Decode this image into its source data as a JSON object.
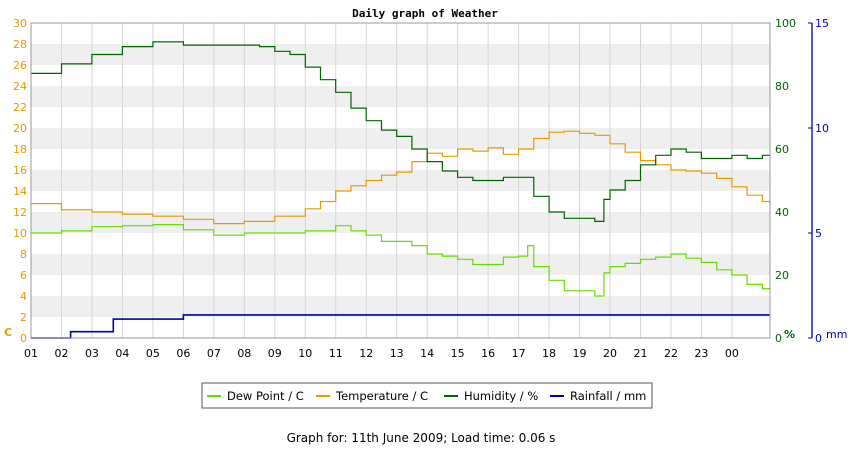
{
  "chart_data": {
    "type": "line",
    "title": "Daily graph of Weather",
    "x_ticks": [
      "01",
      "02",
      "03",
      "04",
      "05",
      "06",
      "07",
      "08",
      "09",
      "10",
      "11",
      "12",
      "13",
      "14",
      "15",
      "16",
      "17",
      "18",
      "19",
      "20",
      "21",
      "22",
      "23",
      "00"
    ],
    "x_range": [
      1,
      25.25
    ],
    "grid": true,
    "legend_position": "bottom",
    "axes": {
      "temp": {
        "label": "C",
        "range": [
          0,
          30
        ],
        "ticks": [
          0,
          2,
          4,
          6,
          8,
          10,
          12,
          14,
          16,
          18,
          20,
          22,
          24,
          26,
          28,
          30
        ],
        "color": "#e69a00"
      },
      "humidity": {
        "label": "%",
        "range": [
          0,
          100
        ],
        "ticks": [
          0,
          20,
          40,
          60,
          80,
          100
        ],
        "color": "#006400"
      },
      "rain": {
        "label": "mm",
        "range": [
          0,
          15
        ],
        "ticks": [
          0,
          5,
          10,
          15
        ],
        "color": "#0000aa"
      }
    },
    "series": [
      {
        "name": "Dew Point / C",
        "axis": "temp",
        "color": "#66dd00",
        "points": [
          [
            1,
            10
          ],
          [
            2,
            10.2
          ],
          [
            3,
            10.6
          ],
          [
            4,
            10.7
          ],
          [
            5,
            10.8
          ],
          [
            6,
            10.3
          ],
          [
            7,
            9.8
          ],
          [
            8,
            10
          ],
          [
            9,
            10
          ],
          [
            10,
            10.2
          ],
          [
            10.5,
            10.2
          ],
          [
            11,
            10.7
          ],
          [
            11.5,
            10.2
          ],
          [
            12,
            9.8
          ],
          [
            12.5,
            9.2
          ],
          [
            13,
            9.2
          ],
          [
            13.5,
            8.8
          ],
          [
            14,
            8
          ],
          [
            14.5,
            7.8
          ],
          [
            15,
            7.5
          ],
          [
            15.5,
            7
          ],
          [
            16,
            7
          ],
          [
            16.5,
            7.7
          ],
          [
            17,
            7.8
          ],
          [
            17.3,
            8.8
          ],
          [
            17.5,
            6.8
          ],
          [
            18,
            5.5
          ],
          [
            18.5,
            4.5
          ],
          [
            19,
            4.5
          ],
          [
            19.5,
            4
          ],
          [
            19.8,
            6.2
          ],
          [
            20,
            6.8
          ],
          [
            20.5,
            7.1
          ],
          [
            21,
            7.5
          ],
          [
            21.5,
            7.7
          ],
          [
            22,
            8
          ],
          [
            22.5,
            7.6
          ],
          [
            23,
            7.2
          ],
          [
            23.5,
            6.5
          ],
          [
            24,
            6
          ],
          [
            24.5,
            5.1
          ],
          [
            25,
            4.7
          ],
          [
            25.25,
            4.6
          ]
        ]
      },
      {
        "name": "Temperature / C",
        "axis": "temp",
        "color": "#e69a00",
        "points": [
          [
            1,
            12.8
          ],
          [
            2,
            12.2
          ],
          [
            3,
            12
          ],
          [
            4,
            11.8
          ],
          [
            5,
            11.6
          ],
          [
            6,
            11.3
          ],
          [
            7,
            10.9
          ],
          [
            8,
            11.1
          ],
          [
            9,
            11.6
          ],
          [
            10,
            12.3
          ],
          [
            10.5,
            13
          ],
          [
            11,
            14
          ],
          [
            11.5,
            14.5
          ],
          [
            12,
            15
          ],
          [
            12.5,
            15.5
          ],
          [
            13,
            15.8
          ],
          [
            13.5,
            16.8
          ],
          [
            14,
            17.6
          ],
          [
            14.5,
            17.3
          ],
          [
            15,
            18
          ],
          [
            15.5,
            17.8
          ],
          [
            16,
            18.1
          ],
          [
            16.5,
            17.5
          ],
          [
            17,
            18
          ],
          [
            17.5,
            19
          ],
          [
            18,
            19.6
          ],
          [
            18.5,
            19.7
          ],
          [
            19,
            19.5
          ],
          [
            19.5,
            19.3
          ],
          [
            20,
            18.5
          ],
          [
            20.5,
            17.7
          ],
          [
            21,
            16.9
          ],
          [
            21.5,
            16.5
          ],
          [
            22,
            16
          ],
          [
            22.5,
            15.9
          ],
          [
            23,
            15.7
          ],
          [
            23.5,
            15.2
          ],
          [
            24,
            14.4
          ],
          [
            24.5,
            13.6
          ],
          [
            25,
            13
          ],
          [
            25.25,
            12.7
          ]
        ]
      },
      {
        "name": "Humidity / %",
        "axis": "humidity",
        "color": "#006400",
        "points": [
          [
            1,
            84
          ],
          [
            2,
            87
          ],
          [
            3,
            90
          ],
          [
            4,
            92.5
          ],
          [
            5,
            94
          ],
          [
            6,
            93
          ],
          [
            7,
            93
          ],
          [
            8,
            93
          ],
          [
            8.5,
            92.5
          ],
          [
            9,
            91
          ],
          [
            9.5,
            90
          ],
          [
            10,
            86
          ],
          [
            10.5,
            82
          ],
          [
            11,
            78
          ],
          [
            11.5,
            73
          ],
          [
            12,
            69
          ],
          [
            12.5,
            66
          ],
          [
            13,
            64
          ],
          [
            13.5,
            60
          ],
          [
            14,
            56
          ],
          [
            14.5,
            53
          ],
          [
            15,
            51
          ],
          [
            15.5,
            50
          ],
          [
            16,
            50
          ],
          [
            16.5,
            51
          ],
          [
            17,
            51
          ],
          [
            17.4,
            51
          ],
          [
            17.5,
            45
          ],
          [
            18,
            40
          ],
          [
            18.5,
            38
          ],
          [
            19,
            38
          ],
          [
            19.5,
            37
          ],
          [
            19.8,
            44
          ],
          [
            20,
            47
          ],
          [
            20.5,
            50
          ],
          [
            21,
            55
          ],
          [
            21.5,
            58
          ],
          [
            22,
            60
          ],
          [
            22.5,
            59
          ],
          [
            23,
            57
          ],
          [
            23.5,
            57
          ],
          [
            24,
            58
          ],
          [
            24.5,
            57
          ],
          [
            25,
            58
          ],
          [
            25.25,
            58
          ]
        ]
      },
      {
        "name": "Rainfall / mm",
        "axis": "rain",
        "color": "#0000aa",
        "points": [
          [
            1,
            0
          ],
          [
            2.3,
            0
          ],
          [
            2.3,
            0.3
          ],
          [
            3.7,
            0.3
          ],
          [
            3.7,
            0.9
          ],
          [
            6,
            0.9
          ],
          [
            6,
            1.1
          ],
          [
            25.25,
            1.1
          ]
        ]
      }
    ]
  },
  "footer": "Graph for: 11th June 2009; Load time: 0.06 s"
}
